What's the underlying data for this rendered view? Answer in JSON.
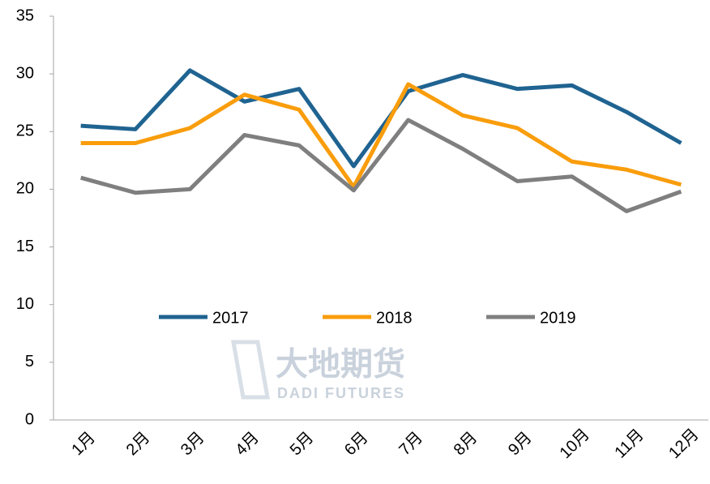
{
  "chart_data": {
    "type": "line",
    "categories": [
      "1月",
      "2月",
      "3月",
      "4月",
      "5月",
      "6月",
      "7月",
      "8月",
      "9月",
      "10月",
      "11月",
      "12月"
    ],
    "series": [
      {
        "name": "2017",
        "color": "#1f6391",
        "values": [
          25.5,
          25.2,
          30.3,
          27.6,
          28.7,
          22.0,
          28.5,
          29.9,
          28.7,
          29.0,
          26.7,
          24.0
        ]
      },
      {
        "name": "2018",
        "color": "#f99d0c",
        "values": [
          24.0,
          24.0,
          25.3,
          28.2,
          26.9,
          20.2,
          29.1,
          26.4,
          25.3,
          22.4,
          21.7,
          20.4
        ]
      },
      {
        "name": "2019",
        "color": "#7f7f7f",
        "values": [
          21.0,
          19.7,
          20.0,
          24.7,
          23.8,
          19.9,
          26.0,
          23.5,
          20.7,
          21.1,
          18.1,
          19.8
        ]
      }
    ],
    "ylim": [
      0,
      35
    ],
    "yticks": [
      0,
      5,
      10,
      15,
      20,
      25,
      30,
      35
    ],
    "grid": false,
    "legend": "center",
    "watermark": {
      "name": "大地期货",
      "subname": "DADI FUTURES"
    }
  }
}
